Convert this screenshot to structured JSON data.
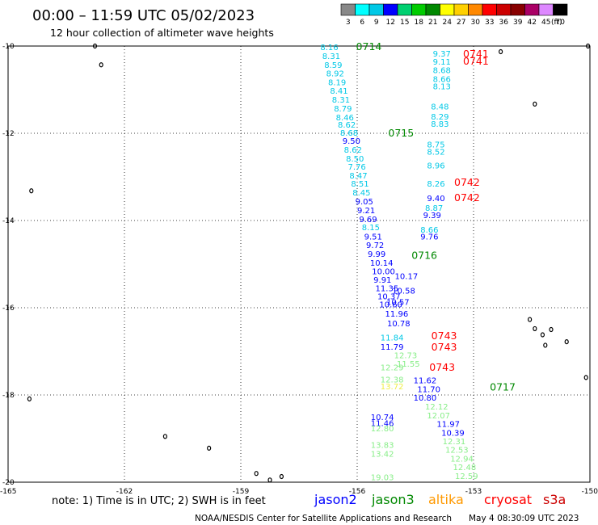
{
  "header": {
    "title": "00:00 – 11:59 UTC 05/02/2023",
    "subtitle": "12 hour collection of altimeter wave heights"
  },
  "legend": {
    "unit": "(ft)",
    "bins": [
      {
        "label": "3",
        "color": "#888888"
      },
      {
        "label": "6",
        "color": "#00ffff"
      },
      {
        "label": "9",
        "color": "#00c8e6"
      },
      {
        "label": "12",
        "color": "#0000ff"
      },
      {
        "label": "15",
        "color": "#00d070"
      },
      {
        "label": "18",
        "color": "#00cc00"
      },
      {
        "label": "21",
        "color": "#008800"
      },
      {
        "label": "24",
        "color": "#ffff00"
      },
      {
        "label": "27",
        "color": "#ffd000"
      },
      {
        "label": "30",
        "color": "#ff8800"
      },
      {
        "label": "33",
        "color": "#ff0000"
      },
      {
        "label": "36",
        "color": "#cc0000"
      },
      {
        "label": "39",
        "color": "#880000"
      },
      {
        "label": "42",
        "color": "#aa0066"
      },
      {
        "label": "45",
        "color": "#dd88ff"
      },
      {
        "label": "70",
        "color": "#000000"
      }
    ]
  },
  "map": {
    "lon_range": [
      -165,
      -150
    ],
    "lat_range": [
      -20,
      -10
    ],
    "y_ticks": [
      "-10",
      "-12",
      "-14",
      "-16",
      "-18",
      "-20"
    ],
    "x_ticks": [
      "-165",
      "-162",
      "-159",
      "-156",
      "-153",
      "-150"
    ]
  },
  "passes": [
    {
      "label": "0714",
      "lon": -156.03,
      "lat": -10.0,
      "color": "#008800"
    },
    {
      "label": "0715",
      "lon": -155.2,
      "lat": -11.98,
      "color": "#008800"
    },
    {
      "label": "0716",
      "lon": -154.6,
      "lat": -14.79,
      "color": "#008800"
    },
    {
      "label": "0717",
      "lon": -152.58,
      "lat": -17.81,
      "color": "#008800"
    },
    {
      "label": "0741",
      "lon": -153.27,
      "lat": -10.17,
      "color": "#ff0000"
    },
    {
      "label": "0741",
      "lon": -153.27,
      "lat": -10.33,
      "color": "#ff0000"
    },
    {
      "label": "0742",
      "lon": -153.5,
      "lat": -13.11,
      "color": "#ff0000"
    },
    {
      "label": "0742",
      "lon": -153.5,
      "lat": -13.46,
      "color": "#ff0000"
    },
    {
      "label": "0743",
      "lon": -154.09,
      "lat": -16.63,
      "color": "#ff0000"
    },
    {
      "label": "0743",
      "lon": -154.09,
      "lat": -16.89,
      "color": "#ff0000"
    },
    {
      "label": "0743",
      "lon": -154.14,
      "lat": -17.35,
      "color": "#ff0000"
    }
  ],
  "points": [
    {
      "v": "8.16",
      "lon": -156.95,
      "lat": -10.02,
      "c": "#00c8e6"
    },
    {
      "v": "8.31",
      "lon": -156.9,
      "lat": -10.22,
      "c": "#00c8e6"
    },
    {
      "v": "8.59",
      "lon": -156.85,
      "lat": -10.43,
      "c": "#00c8e6"
    },
    {
      "v": "8.92",
      "lon": -156.8,
      "lat": -10.62,
      "c": "#00c8e6"
    },
    {
      "v": "8.19",
      "lon": -156.75,
      "lat": -10.82,
      "c": "#00c8e6"
    },
    {
      "v": "8.41",
      "lon": -156.7,
      "lat": -11.02,
      "c": "#00c8e6"
    },
    {
      "v": "8.31",
      "lon": -156.65,
      "lat": -11.22,
      "c": "#00c8e6"
    },
    {
      "v": "8.79",
      "lon": -156.6,
      "lat": -11.43,
      "c": "#00c8e6"
    },
    {
      "v": "8.46",
      "lon": -156.55,
      "lat": -11.63,
      "c": "#00c8e6"
    },
    {
      "v": "8.62",
      "lon": -156.5,
      "lat": -11.8,
      "c": "#00c8e6"
    },
    {
      "v": "8.68",
      "lon": -156.44,
      "lat": -11.98,
      "c": "#00c8e6"
    },
    {
      "v": "9.50",
      "lon": -156.38,
      "lat": -12.17,
      "c": "#0000ff"
    },
    {
      "v": "8.62",
      "lon": -156.34,
      "lat": -12.37,
      "c": "#00c8e6"
    },
    {
      "v": "8.50",
      "lon": -156.29,
      "lat": -12.57,
      "c": "#00c8e6"
    },
    {
      "v": "7.76",
      "lon": -156.24,
      "lat": -12.76,
      "c": "#00c8e6"
    },
    {
      "v": "8.47",
      "lon": -156.2,
      "lat": -12.96,
      "c": "#00c8e6"
    },
    {
      "v": "8.51",
      "lon": -156.16,
      "lat": -13.15,
      "c": "#00c8e6"
    },
    {
      "v": "8.45",
      "lon": -156.12,
      "lat": -13.35,
      "c": "#00c8e6"
    },
    {
      "v": "9.05",
      "lon": -156.05,
      "lat": -13.56,
      "c": "#0000ff"
    },
    {
      "v": "9.21",
      "lon": -156.0,
      "lat": -13.76,
      "c": "#0000ff"
    },
    {
      "v": "9.69",
      "lon": -155.95,
      "lat": -13.96,
      "c": "#0000ff"
    },
    {
      "v": "8.15",
      "lon": -155.88,
      "lat": -14.15,
      "c": "#00c8e6"
    },
    {
      "v": "9.51",
      "lon": -155.82,
      "lat": -14.36,
      "c": "#0000ff"
    },
    {
      "v": "9.72",
      "lon": -155.77,
      "lat": -14.56,
      "c": "#0000ff"
    },
    {
      "v": "9.99",
      "lon": -155.73,
      "lat": -14.76,
      "c": "#0000ff"
    },
    {
      "v": "10.14",
      "lon": -155.67,
      "lat": -14.96,
      "c": "#0000ff"
    },
    {
      "v": "10.00",
      "lon": -155.62,
      "lat": -15.16,
      "c": "#0000ff"
    },
    {
      "v": "9.91",
      "lon": -155.58,
      "lat": -15.35,
      "c": "#0000ff"
    },
    {
      "v": "11.35",
      "lon": -155.53,
      "lat": -15.55,
      "c": "#0000ff"
    },
    {
      "v": "10.37",
      "lon": -155.48,
      "lat": -15.73,
      "c": "#0000ff"
    },
    {
      "v": "10.60",
      "lon": -155.43,
      "lat": -15.92,
      "c": "#0000ff"
    },
    {
      "v": "11.96",
      "lon": -155.28,
      "lat": -16.13,
      "c": "#0000ff"
    },
    {
      "v": "10.78",
      "lon": -155.23,
      "lat": -16.35,
      "c": "#0000ff"
    },
    {
      "v": "11.84",
      "lon": -155.4,
      "lat": -16.68,
      "c": "#00c8e6"
    },
    {
      "v": "11.79",
      "lon": -155.4,
      "lat": -16.89,
      "c": "#0000ff"
    },
    {
      "v": "12.73",
      "lon": -155.05,
      "lat": -17.08,
      "c": "#88ee88"
    },
    {
      "v": "11.55",
      "lon": -154.98,
      "lat": -17.28,
      "c": "#88ee88"
    },
    {
      "v": "12.29",
      "lon": -155.4,
      "lat": -17.36,
      "c": "#88ee88"
    },
    {
      "v": "12.38",
      "lon": -155.4,
      "lat": -17.64,
      "c": "#88ee88"
    },
    {
      "v": "13.72",
      "lon": -155.4,
      "lat": -17.8,
      "c": "#eeee44"
    },
    {
      "v": "11.62",
      "lon": -154.55,
      "lat": -17.66,
      "c": "#0000ff"
    },
    {
      "v": "11.70",
      "lon": -154.45,
      "lat": -17.86,
      "c": "#0000ff"
    },
    {
      "v": "10.80",
      "lon": -154.55,
      "lat": -18.06,
      "c": "#0000ff"
    },
    {
      "v": "12.12",
      "lon": -154.25,
      "lat": -18.26,
      "c": "#88ee88"
    },
    {
      "v": "12.07",
      "lon": -154.2,
      "lat": -18.46,
      "c": "#88ee88"
    },
    {
      "v": "11.97",
      "lon": -153.95,
      "lat": -18.66,
      "c": "#0000ff"
    },
    {
      "v": "10.39",
      "lon": -153.83,
      "lat": -18.86,
      "c": "#0000ff"
    },
    {
      "v": "12.31",
      "lon": -153.8,
      "lat": -19.06,
      "c": "#88ee88"
    },
    {
      "v": "12.53",
      "lon": -153.73,
      "lat": -19.25,
      "c": "#88ee88"
    },
    {
      "v": "12.94",
      "lon": -153.6,
      "lat": -19.45,
      "c": "#88ee88"
    },
    {
      "v": "12.48",
      "lon": -153.53,
      "lat": -19.65,
      "c": "#88ee88"
    },
    {
      "v": "12.59",
      "lon": -153.48,
      "lat": -19.85,
      "c": "#88ee88"
    },
    {
      "v": "10.74",
      "lon": -155.65,
      "lat": -18.5,
      "c": "#0000ff"
    },
    {
      "v": "11.46",
      "lon": -155.65,
      "lat": -18.64,
      "c": "#0000ff"
    },
    {
      "v": "12.80",
      "lon": -155.65,
      "lat": -18.76,
      "c": "#88ee88"
    },
    {
      "v": "13.83",
      "lon": -155.65,
      "lat": -19.14,
      "c": "#88ee88"
    },
    {
      "v": "13.42",
      "lon": -155.65,
      "lat": -19.34,
      "c": "#88ee88"
    },
    {
      "v": "19.03",
      "lon": -155.65,
      "lat": -19.88,
      "c": "#88ee88"
    },
    {
      "v": "9.37",
      "lon": -154.05,
      "lat": -10.17,
      "c": "#00c8e6"
    },
    {
      "v": "9.11",
      "lon": -154.05,
      "lat": -10.35,
      "c": "#00c8e6"
    },
    {
      "v": "8.68",
      "lon": -154.05,
      "lat": -10.55,
      "c": "#00c8e6"
    },
    {
      "v": "8.66",
      "lon": -154.05,
      "lat": -10.75,
      "c": "#00c8e6"
    },
    {
      "v": "8.13",
      "lon": -154.05,
      "lat": -10.92,
      "c": "#00c8e6"
    },
    {
      "v": "8.48",
      "lon": -154.1,
      "lat": -11.38,
      "c": "#00c8e6"
    },
    {
      "v": "8.29",
      "lon": -154.1,
      "lat": -11.61,
      "c": "#00c8e6"
    },
    {
      "v": "8.83",
      "lon": -154.1,
      "lat": -11.78,
      "c": "#00c8e6"
    },
    {
      "v": "8.75",
      "lon": -154.2,
      "lat": -12.25,
      "c": "#00c8e6"
    },
    {
      "v": "8.52",
      "lon": -154.2,
      "lat": -12.42,
      "c": "#00c8e6"
    },
    {
      "v": "8.96",
      "lon": -154.2,
      "lat": -12.73,
      "c": "#00c8e6"
    },
    {
      "v": "8.26",
      "lon": -154.2,
      "lat": -13.15,
      "c": "#00c8e6"
    },
    {
      "v": "9.40",
      "lon": -154.2,
      "lat": -13.48,
      "c": "#0000ff"
    },
    {
      "v": "8.87",
      "lon": -154.25,
      "lat": -13.7,
      "c": "#00c8e6"
    },
    {
      "v": "9.39",
      "lon": -154.3,
      "lat": -13.87,
      "c": "#0000ff"
    },
    {
      "v": "8.66",
      "lon": -154.37,
      "lat": -14.2,
      "c": "#00c8e6"
    },
    {
      "v": "9.76",
      "lon": -154.37,
      "lat": -14.36,
      "c": "#0000ff"
    },
    {
      "v": "10.17",
      "lon": -155.03,
      "lat": -15.27,
      "c": "#0000ff"
    },
    {
      "v": "10.58",
      "lon": -155.1,
      "lat": -15.6,
      "c": "#0000ff"
    },
    {
      "v": "10.57",
      "lon": -155.25,
      "lat": -15.86,
      "c": "#0000ff"
    }
  ],
  "islands": [
    {
      "lon": -162.76,
      "lat": -10.0
    },
    {
      "lon": -162.6,
      "lat": -10.43
    },
    {
      "lon": -164.4,
      "lat": -13.32
    },
    {
      "lon": -164.45,
      "lat": -18.09
    },
    {
      "lon": -160.95,
      "lat": -18.95
    },
    {
      "lon": -159.82,
      "lat": -19.22
    },
    {
      "lon": -158.6,
      "lat": -19.8
    },
    {
      "lon": -158.25,
      "lat": -19.95
    },
    {
      "lon": -157.95,
      "lat": -19.87
    },
    {
      "lon": -152.3,
      "lat": -10.13
    },
    {
      "lon": -151.42,
      "lat": -11.33
    },
    {
      "lon": -151.55,
      "lat": -16.27
    },
    {
      "lon": -151.0,
      "lat": -16.5
    },
    {
      "lon": -151.42,
      "lat": -16.48
    },
    {
      "lon": -151.22,
      "lat": -16.62
    },
    {
      "lon": -151.15,
      "lat": -16.86
    },
    {
      "lon": -150.6,
      "lat": -16.78
    },
    {
      "lon": -150.1,
      "lat": -17.6
    },
    {
      "lon": -150.05,
      "lat": -10.0
    }
  ],
  "footer": {
    "note": "note:  1) Time is in UTC;  2) SWH is in feet",
    "satellites": [
      {
        "name": "jason2",
        "color": "#0000ff"
      },
      {
        "name": "jason3",
        "color": "#008800"
      },
      {
        "name": "altika",
        "color": "#ff9900"
      },
      {
        "name": "cryosat",
        "color": "#ff0000"
      },
      {
        "name": "s3a",
        "color": "#cc0000"
      }
    ],
    "credit": "NOAA/NESDIS Center for Satellite Applications and Research",
    "timestamp": "May  4 08:30:09 UTC 2023"
  }
}
